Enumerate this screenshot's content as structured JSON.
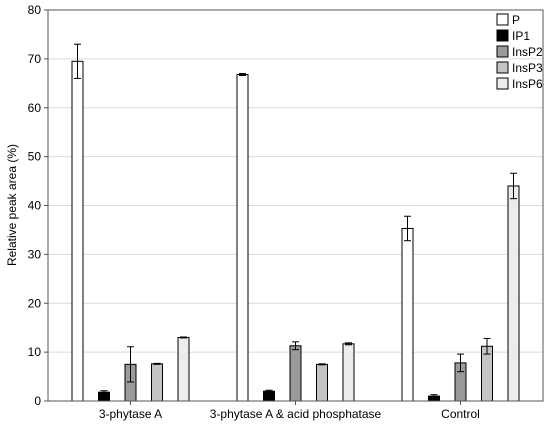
{
  "chart_data": {
    "type": "bar",
    "title": "",
    "xlabel": "",
    "ylabel": "Relative peak area (%)",
    "ylim": [
      0,
      80
    ],
    "yticks": [
      0,
      10,
      20,
      30,
      40,
      50,
      60,
      70,
      80
    ],
    "grid": true,
    "legend_position": "top-right",
    "error_bars": true,
    "categories": [
      "3-phytase A",
      "3-phytase A & acid phosphatase",
      "Control"
    ],
    "series": [
      {
        "name": "P",
        "color": "#ffffff",
        "values": [
          69.5,
          66.8,
          35.3
        ],
        "errors": [
          3.5,
          0.2,
          2.5
        ]
      },
      {
        "name": "IP1",
        "color": "#000000",
        "values": [
          1.8,
          2.0,
          1.0
        ],
        "errors": [
          0.3,
          0.2,
          0.3
        ]
      },
      {
        "name": "InsP2",
        "color": "#9a9a9a",
        "values": [
          7.5,
          11.3,
          7.8
        ],
        "errors": [
          3.6,
          0.8,
          1.8
        ]
      },
      {
        "name": "InsP3",
        "color": "#c4c4c4",
        "values": [
          7.6,
          7.5,
          11.2
        ],
        "errors": [
          0.1,
          0.1,
          1.6
        ]
      },
      {
        "name": "InsP6",
        "color": "#ececec",
        "values": [
          13.0,
          11.7,
          44.0
        ],
        "errors": [
          0.1,
          0.2,
          2.6
        ]
      }
    ]
  }
}
